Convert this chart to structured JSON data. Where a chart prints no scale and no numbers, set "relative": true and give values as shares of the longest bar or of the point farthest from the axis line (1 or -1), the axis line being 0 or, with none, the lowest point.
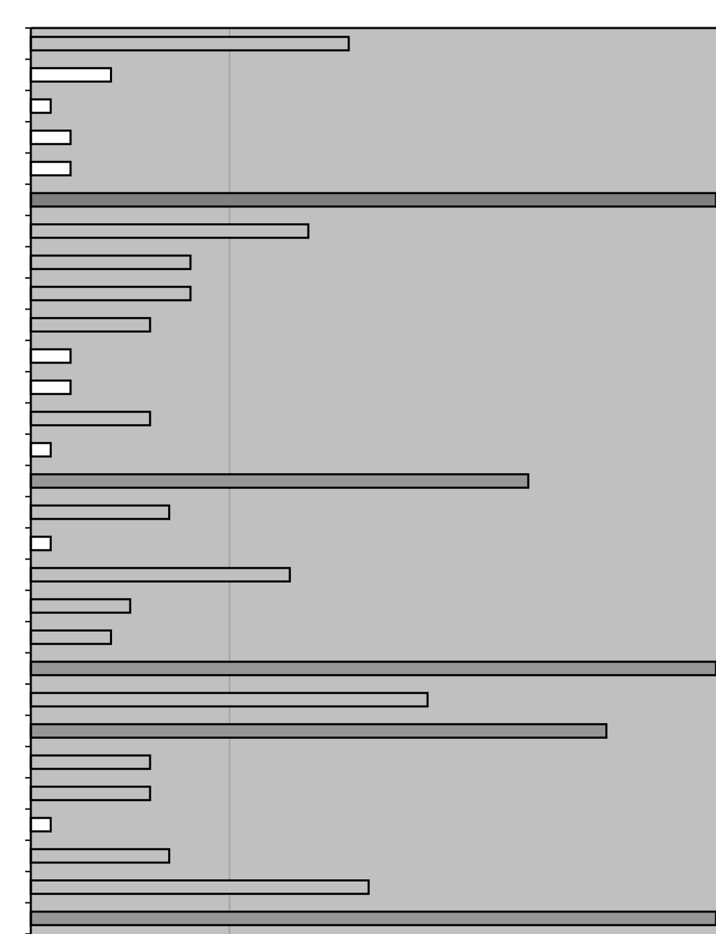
{
  "chart_data": {
    "type": "bar",
    "orientation": "horizontal",
    "relative": true,
    "categories": [
      null,
      null,
      null,
      null,
      null,
      null,
      null,
      null,
      null,
      null,
      null,
      null,
      null,
      null,
      null,
      null,
      null,
      null,
      null,
      null,
      null,
      null,
      null,
      null,
      null,
      null,
      null,
      null,
      null
    ],
    "values": [
      0.464,
      0.117,
      0.029,
      0.058,
      0.058,
      1,
      0.405,
      0.233,
      0.233,
      0.174,
      0.058,
      0.058,
      0.174,
      0.029,
      0.726,
      0.202,
      0.029,
      0.378,
      0.145,
      0.117,
      1,
      0.579,
      0.84,
      0.174,
      0.174,
      0.029,
      0.202,
      0.493,
      1
    ],
    "colors": [
      "#c0c0c0",
      "#ffffff",
      "#ffffff",
      "#ffffff",
      "#ffffff",
      "#808080",
      "#c0c0c0",
      "#c0c0c0",
      "#c0c0c0",
      "#c0c0c0",
      "#ffffff",
      "#ffffff",
      "#c0c0c0",
      "#ffffff",
      "#969696",
      "#c0c0c0",
      "#ffffff",
      "#c0c0c0",
      "#c0c0c0",
      "#c0c0c0",
      "#969696",
      "#c0c0c0",
      "#969696",
      "#c0c0c0",
      "#c0c0c0",
      "#ffffff",
      "#c0c0c0",
      "#c0c0c0",
      "#969696"
    ],
    "ref_lines": [
      {
        "axis": "x",
        "value": 0.29,
        "color": "#a0a0a0"
      }
    ]
  }
}
